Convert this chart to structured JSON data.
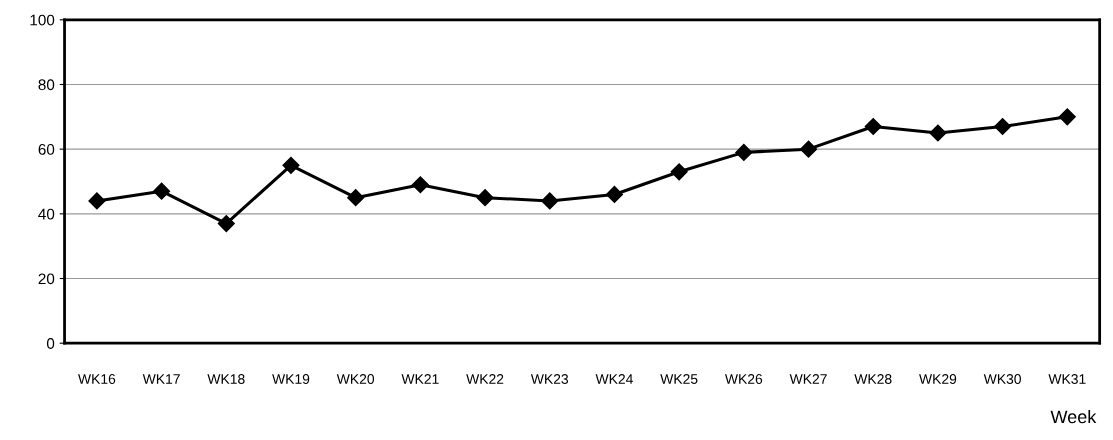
{
  "chart_data": {
    "type": "line",
    "xlabel": "Week",
    "categories": [
      "WK16",
      "WK17",
      "WK18",
      "WK19",
      "WK20",
      "WK21",
      "WK22",
      "WK23",
      "WK24",
      "WK25",
      "WK26",
      "WK27",
      "WK28",
      "WK29",
      "WK30",
      "WK31"
    ],
    "series": [
      {
        "color": "#000000",
        "values": [
          44,
          47,
          37,
          55,
          45,
          49,
          45,
          44,
          46,
          53,
          59,
          60,
          67,
          65,
          67,
          70
        ]
      }
    ],
    "ylim": [
      0,
      100
    ],
    "yticks": [
      0,
      20,
      40,
      60,
      80,
      100
    ],
    "grid": "y",
    "marker": "diamond",
    "line_style": "solid"
  }
}
